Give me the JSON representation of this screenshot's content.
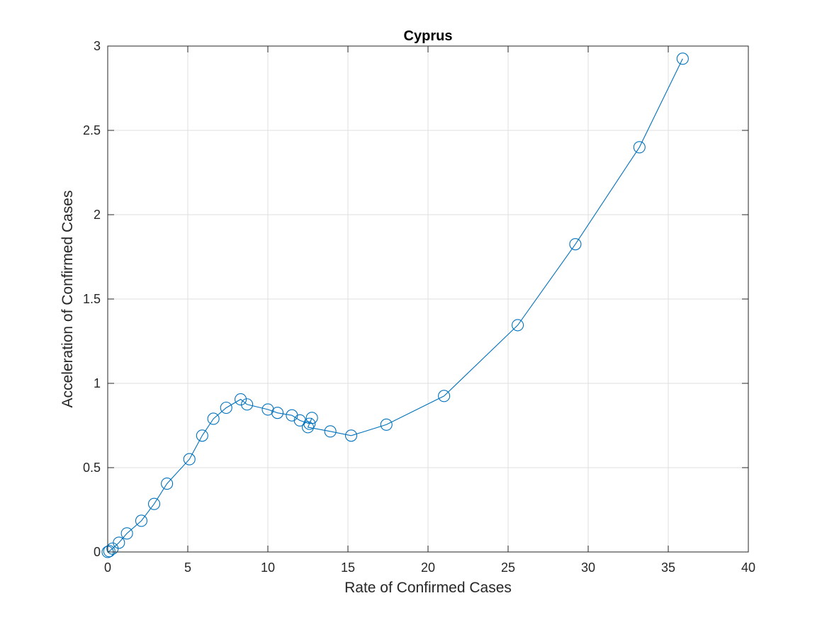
{
  "chart_data": {
    "type": "line",
    "title": "Cyprus",
    "xlabel": "Rate of Confirmed Cases",
    "ylabel": "Acceleration of Confirmed Cases",
    "xlim": [
      0,
      40
    ],
    "ylim": [
      0,
      3
    ],
    "xticks": [
      0,
      5,
      10,
      15,
      20,
      25,
      30,
      35,
      40
    ],
    "yticks": [
      0,
      0.5,
      1,
      1.5,
      2,
      2.5,
      3
    ],
    "xtick_labels": [
      "0",
      "5",
      "10",
      "15",
      "20",
      "25",
      "30",
      "35",
      "40"
    ],
    "ytick_labels": [
      "0",
      "0.5",
      "1",
      "1.5",
      "2",
      "2.5",
      "3"
    ],
    "grid": true,
    "marker": "circle",
    "color": "#0072BD",
    "series": [
      {
        "x": [
          0.0,
          0.1,
          0.3,
          0.7,
          1.2,
          2.1,
          2.9,
          3.7,
          5.1,
          5.9,
          6.6,
          7.4,
          8.3,
          8.7,
          10.0,
          10.6,
          11.5,
          12.0,
          12.6,
          12.75,
          12.5,
          13.9,
          15.2,
          17.4,
          21.0,
          25.6,
          29.2,
          33.2,
          35.9
        ],
        "y": [
          0.0,
          0.005,
          0.02,
          0.055,
          0.11,
          0.185,
          0.285,
          0.405,
          0.55,
          0.69,
          0.79,
          0.855,
          0.905,
          0.875,
          0.845,
          0.825,
          0.81,
          0.78,
          0.76,
          0.795,
          0.74,
          0.715,
          0.69,
          0.755,
          0.925,
          1.345,
          1.825,
          2.4,
          2.925
        ]
      }
    ]
  }
}
